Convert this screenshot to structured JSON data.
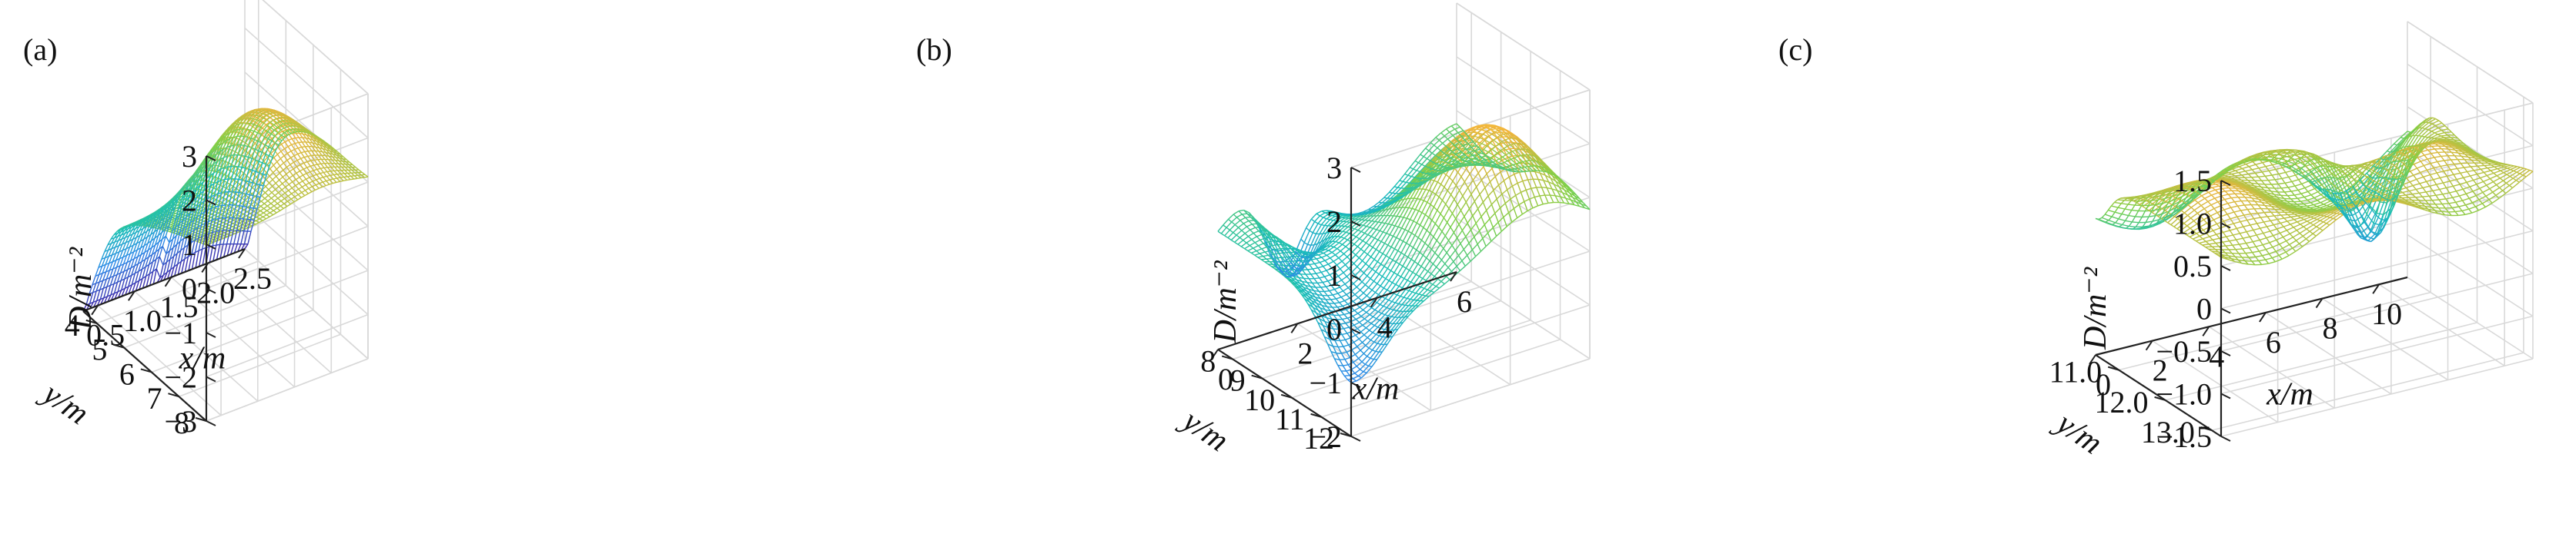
{
  "figure": {
    "panels": [
      "(a)",
      "(b)",
      "(c)"
    ]
  },
  "colors": {
    "grid": "#d9d9d9",
    "axis": "#222222",
    "colormap": [
      "#3e26a8",
      "#2d8ae8",
      "#19bfb6",
      "#7ed048",
      "#f2b33d",
      "#f9e52a"
    ]
  },
  "chart_data": [
    {
      "type": "surface",
      "panel": "(a)",
      "xlabel": "x/m",
      "ylabel": "y/m",
      "zlabel": "D/m⁻²",
      "xlim": [
        0.3,
        2.5
      ],
      "ylim": [
        3.5,
        8
      ],
      "zlim": [
        -3,
        3
      ],
      "xticks": [
        "0.5",
        "1.0",
        "1.5",
        "2.0",
        "2.5"
      ],
      "yticks": [
        "4",
        "5",
        "6",
        "7",
        "8"
      ],
      "zticks": [
        "−3",
        "−2",
        "−1",
        "0",
        "1",
        "2",
        "3"
      ],
      "xtick_values": [
        0.5,
        1.0,
        1.5,
        2.0,
        2.5
      ],
      "ytick_values": [
        4,
        5,
        6,
        7,
        8
      ],
      "ztick_values": [
        -3,
        -2,
        -1,
        0,
        1,
        2,
        3
      ],
      "grid": true,
      "surface_shape": "peaked ridge near x≈1.9, y≈5.5; deep drop toward small y"
    },
    {
      "type": "surface",
      "panel": "(b)",
      "xlabel": "x/m",
      "ylabel": "y/m",
      "zlabel": "D/m⁻²",
      "xlim": [
        0,
        6
      ],
      "ylim": [
        7.5,
        12
      ],
      "zlim": [
        -2,
        3
      ],
      "xticks": [
        "0",
        "2",
        "4",
        "6"
      ],
      "yticks": [
        "8",
        "9",
        "10",
        "11",
        "12"
      ],
      "zticks": [
        "−2",
        "−1",
        "0",
        "1",
        "2",
        "3"
      ],
      "xtick_values": [
        0,
        2,
        4,
        6
      ],
      "ytick_values": [
        8,
        9,
        10,
        11,
        12
      ],
      "ztick_values": [
        -2,
        -1,
        0,
        1,
        2,
        3
      ],
      "grid": true,
      "surface_shape": "wavy surface, peak near x≈5, y≈10.5, trough near x≈1.5, y≈7.5"
    },
    {
      "type": "surface",
      "panel": "(c)",
      "xlabel": "x/m",
      "ylabel": "y/m",
      "zlabel": "D/m⁻²",
      "xlim": [
        0,
        11
      ],
      "ylim": [
        10.5,
        13.2
      ],
      "zlim": [
        -1.5,
        1.5
      ],
      "xticks": [
        "0",
        "2",
        "4",
        "6",
        "8",
        "10"
      ],
      "yticks": [
        "11.0",
        "12.0",
        "13.0"
      ],
      "zticks": [
        "−1.5",
        "−1.0",
        "−0.5",
        "0",
        "0.5",
        "1.0",
        "1.5"
      ],
      "xtick_values": [
        0,
        2,
        4,
        6,
        8,
        10
      ],
      "ytick_values": [
        11.0,
        12.0,
        13.0
      ],
      "ztick_values": [
        -1.5,
        -1.0,
        -0.5,
        0,
        0.5,
        1.0,
        1.5
      ],
      "grid": true,
      "surface_shape": "mostly flat high plateau with a low notch near x≈8, y≈11"
    }
  ]
}
